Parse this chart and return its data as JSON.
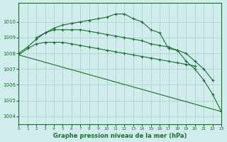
{
  "background_color": "#d0ecec",
  "grid_color": "#aed4cc",
  "line_color": "#1a6e2e",
  "title": "Graphe pression niveau de la mer (hPa)",
  "xlim": [
    0,
    23
  ],
  "ylim": [
    1003.5,
    1011.2
  ],
  "yticks": [
    1004,
    1005,
    1006,
    1007,
    1008,
    1009,
    1010
  ],
  "xticks": [
    0,
    1,
    2,
    3,
    4,
    5,
    6,
    7,
    8,
    9,
    10,
    11,
    12,
    13,
    14,
    15,
    16,
    17,
    18,
    19,
    20,
    21,
    22,
    23
  ],
  "series": [
    {
      "x": [
        0,
        1,
        2,
        3,
        4,
        5,
        6,
        7,
        8,
        9,
        10,
        11,
        12,
        13,
        14,
        15,
        16,
        17,
        18,
        19,
        20,
        21,
        22,
        23
      ],
      "y": [
        1008.0,
        1008.4,
        1008.9,
        1009.3,
        1009.6,
        1009.8,
        1009.9,
        1010.0,
        1010.1,
        1010.2,
        1010.3,
        1010.5,
        1010.5,
        1010.2,
        1010.0,
        1009.5,
        1009.3,
        1008.3,
        1008.2,
        1007.5,
        1007.0,
        1006.3,
        1005.4,
        1004.3
      ]
    },
    {
      "x": [
        2,
        3,
        4,
        5,
        6,
        7,
        8,
        9,
        10,
        11,
        12,
        13,
        14,
        15,
        16,
        17,
        18,
        19,
        20,
        21,
        22
      ],
      "y": [
        1009.0,
        1009.3,
        1009.5,
        1009.5,
        1009.5,
        1009.5,
        1009.4,
        1009.3,
        1009.2,
        1009.1,
        1009.0,
        1008.9,
        1008.8,
        1008.6,
        1008.5,
        1008.4,
        1008.2,
        1008.0,
        1007.5,
        1007.0,
        1006.3
      ]
    },
    {
      "x": [
        0,
        1,
        2,
        3,
        4,
        5,
        6,
        7,
        8,
        9,
        10,
        11,
        12,
        13,
        14,
        15,
        16,
        17,
        18,
        19,
        20
      ],
      "y": [
        1007.9,
        1008.3,
        1008.6,
        1008.7,
        1008.7,
        1008.7,
        1008.6,
        1008.5,
        1008.4,
        1008.3,
        1008.2,
        1008.1,
        1008.0,
        1007.9,
        1007.8,
        1007.7,
        1007.6,
        1007.5,
        1007.4,
        1007.3,
        1007.2
      ]
    },
    {
      "x": [
        0,
        23
      ],
      "y": [
        1007.9,
        1004.3
      ]
    }
  ]
}
